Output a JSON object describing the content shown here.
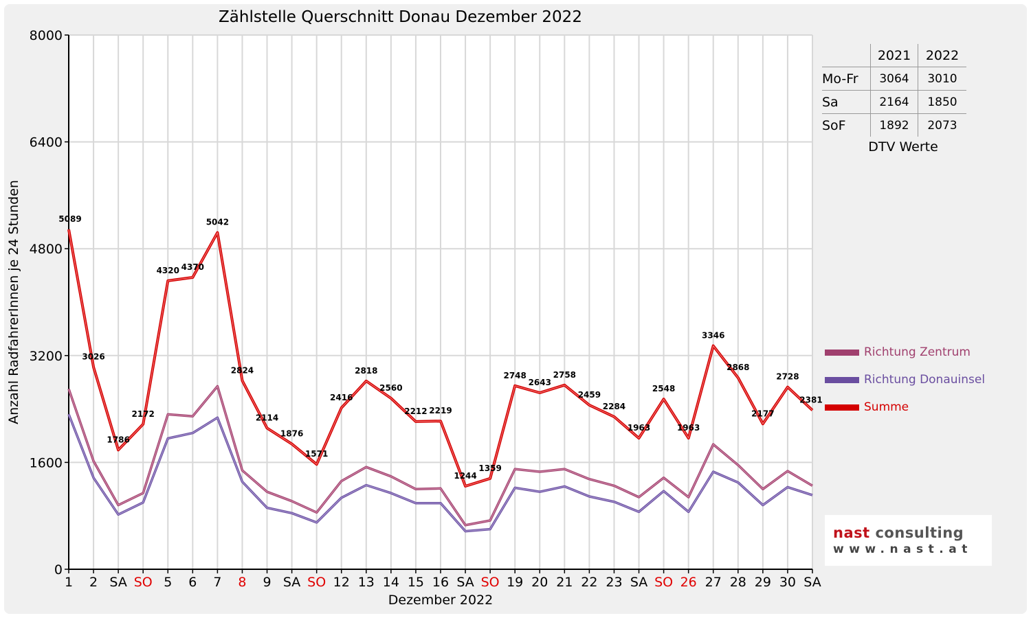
{
  "chart_data": {
    "type": "line",
    "title": "Zählstelle Querschnitt Donau Dezember 2022",
    "xlabel": "Dezember 2022",
    "ylabel": "Anzahl RadfahrerInnen je 24 Stunden",
    "ylim": [
      0,
      8000
    ],
    "yticks": [
      0,
      1600,
      3200,
      4800,
      6400,
      8000
    ],
    "grid": true,
    "legend_position": "right",
    "categories": [
      "1",
      "2",
      "SA",
      "SO",
      "5",
      "6",
      "7",
      "8",
      "9",
      "SA",
      "SO",
      "12",
      "13",
      "14",
      "15",
      "16",
      "SA",
      "SO",
      "19",
      "20",
      "21",
      "22",
      "23",
      "SA",
      "SO",
      "26",
      "27",
      "28",
      "29",
      "30",
      "SA"
    ],
    "highlighted_categories": [
      "SO",
      "8",
      "26"
    ],
    "highlight_color": "#e00000",
    "series": [
      {
        "name": "Richtung Zentrum",
        "color": "#a0406e",
        "values": [
          2700,
          1620,
          960,
          1140,
          2320,
          2290,
          2740,
          1480,
          1160,
          1020,
          850,
          1320,
          1530,
          1390,
          1200,
          1210,
          660,
          730,
          1500,
          1460,
          1500,
          1350,
          1250,
          1080,
          1370,
          1080,
          1870,
          1560,
          1200,
          1470,
          1250
        ]
      },
      {
        "name": "Richtung Donauinsel",
        "color": "#6a4ea0",
        "values": [
          2320,
          1370,
          820,
          1000,
          1960,
          2040,
          2270,
          1310,
          920,
          840,
          700,
          1070,
          1260,
          1140,
          990,
          990,
          570,
          600,
          1220,
          1160,
          1240,
          1090,
          1010,
          860,
          1170,
          860,
          1460,
          1300,
          960,
          1230,
          1110
        ]
      },
      {
        "name": "Summe",
        "color": "#d40000",
        "values": [
          5089,
          3026,
          1786,
          2172,
          4320,
          4370,
          5042,
          2824,
          2114,
          1876,
          1571,
          2416,
          2818,
          2560,
          2212,
          2219,
          1244,
          1359,
          2748,
          2643,
          2758,
          2459,
          2284,
          1963,
          2548,
          1963,
          3346,
          2868,
          2177,
          2728,
          2381
        ]
      }
    ]
  },
  "dtv_table": {
    "columns": [
      "2021",
      "2022"
    ],
    "rows": [
      {
        "label": "Mo-Fr",
        "values": [
          "3064",
          "3010"
        ]
      },
      {
        "label": "Sa",
        "values": [
          "2164",
          "1850"
        ]
      },
      {
        "label": "SoF",
        "values": [
          "1892",
          "2073"
        ]
      }
    ],
    "caption": "DTV Werte"
  },
  "logo": {
    "name_part1": "nast",
    "name_part2": "consulting",
    "url": "www.nast.at"
  }
}
